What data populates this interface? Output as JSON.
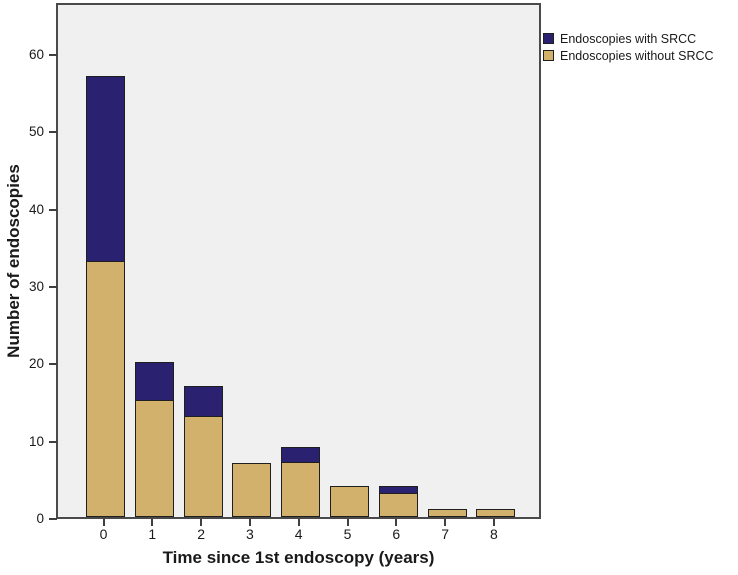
{
  "chart_data": {
    "type": "bar",
    "stacked": true,
    "title": "",
    "xlabel": "Time since 1st endoscopy (years)",
    "ylabel": "Number of endoscopies",
    "categories": [
      "0",
      "1",
      "2",
      "3",
      "4",
      "5",
      "6",
      "7",
      "8"
    ],
    "series": [
      {
        "name": "Endoscopies with SRCC",
        "color": "#2a2170",
        "values": [
          24,
          5,
          4,
          0,
          2,
          0,
          1,
          0,
          0
        ]
      },
      {
        "name": "Endoscopies without SRCC",
        "color": "#d2b16c",
        "values": [
          33,
          15,
          13,
          7,
          7,
          4,
          3,
          1,
          1
        ]
      }
    ],
    "totals": [
      57,
      20,
      17,
      7,
      9,
      4,
      4,
      1,
      1
    ],
    "yticks": [
      0,
      10,
      20,
      30,
      40,
      50,
      60
    ],
    "ylim": [
      0,
      66.75
    ],
    "grid": false,
    "legend_position": "top-right-outside",
    "plot_background": "#f0f0f0",
    "frame_color": "#4a4a4a",
    "bar_border_color": "#1f1f1f",
    "tick_color": "#3f3f3f"
  }
}
